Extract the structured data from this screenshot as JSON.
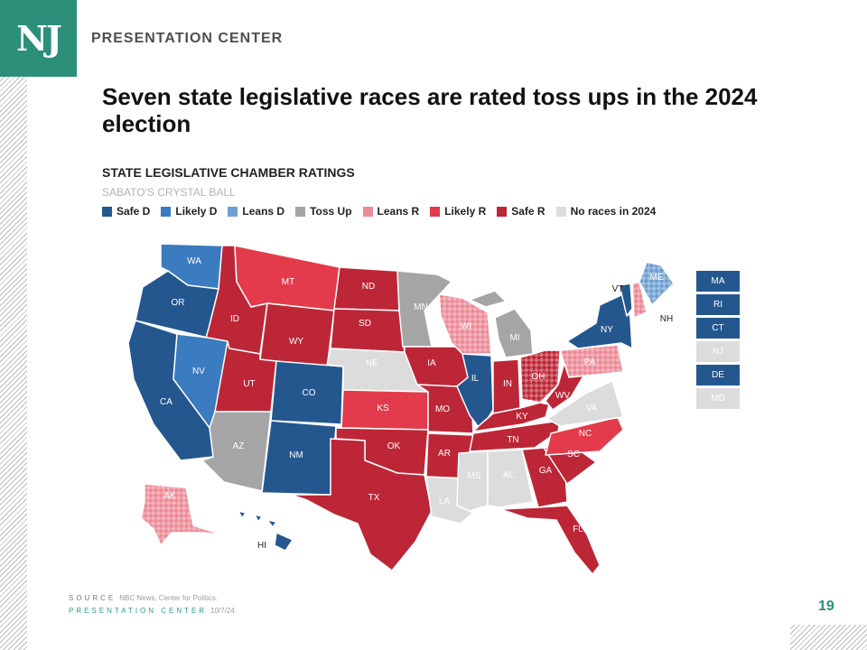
{
  "brand": {
    "logo": "NJ",
    "name": "PRESENTATION CENTER"
  },
  "headline": "Seven state legislative races are rated toss ups in the 2024 election",
  "chart": {
    "title": "STATE LEGISLATIVE CHAMBER RATINGS",
    "subtitle": "SABATO'S CRYSTAL BALL"
  },
  "colors": {
    "safe_d": "#25578f",
    "likely_d": "#3b7bbf",
    "leans_d": "#6d9fd1",
    "toss_up": "#a5a5a5",
    "leans_r": "#ec8a97",
    "likely_r": "#e33b4b",
    "safe_r": "#bd2636",
    "no_races": "#dcdcdc",
    "accent": "#2c8f7a"
  },
  "legend": [
    {
      "label": "Safe D",
      "rating": "safe_d"
    },
    {
      "label": "Likely D",
      "rating": "likely_d"
    },
    {
      "label": "Leans D",
      "rating": "leans_d"
    },
    {
      "label": "Toss Up",
      "rating": "toss_up"
    },
    {
      "label": "Leans R",
      "rating": "leans_r"
    },
    {
      "label": "Likely R",
      "rating": "likely_r"
    },
    {
      "label": "Safe R",
      "rating": "safe_r"
    },
    {
      "label": "No races in 2024",
      "rating": "no_races"
    }
  ],
  "states": [
    {
      "abbr": "WA",
      "rating": "likely_d"
    },
    {
      "abbr": "OR",
      "rating": "safe_d"
    },
    {
      "abbr": "CA",
      "rating": "safe_d"
    },
    {
      "abbr": "ID",
      "rating": "safe_r"
    },
    {
      "abbr": "NV",
      "rating": "likely_d"
    },
    {
      "abbr": "MT",
      "rating": "likely_r"
    },
    {
      "abbr": "WY",
      "rating": "safe_r"
    },
    {
      "abbr": "UT",
      "rating": "safe_r"
    },
    {
      "abbr": "AZ",
      "rating": "toss_up"
    },
    {
      "abbr": "CO",
      "rating": "safe_d"
    },
    {
      "abbr": "NM",
      "rating": "safe_d"
    },
    {
      "abbr": "ND",
      "rating": "safe_r"
    },
    {
      "abbr": "SD",
      "rating": "safe_r"
    },
    {
      "abbr": "NE",
      "rating": "no_races"
    },
    {
      "abbr": "KS",
      "rating": "likely_r"
    },
    {
      "abbr": "OK",
      "rating": "safe_r"
    },
    {
      "abbr": "TX",
      "rating": "safe_r"
    },
    {
      "abbr": "MN",
      "rating": "toss_up"
    },
    {
      "abbr": "IA",
      "rating": "safe_r"
    },
    {
      "abbr": "MO",
      "rating": "safe_r"
    },
    {
      "abbr": "AR",
      "rating": "safe_r"
    },
    {
      "abbr": "LA",
      "rating": "no_races"
    },
    {
      "abbr": "WI",
      "rating": "leans_r"
    },
    {
      "abbr": "IL",
      "rating": "safe_d"
    },
    {
      "abbr": "MI",
      "rating": "toss_up"
    },
    {
      "abbr": "IN",
      "rating": "safe_r"
    },
    {
      "abbr": "OH",
      "rating": "safe_r"
    },
    {
      "abbr": "KY",
      "rating": "safe_r"
    },
    {
      "abbr": "TN",
      "rating": "safe_r"
    },
    {
      "abbr": "MS",
      "rating": "no_races"
    },
    {
      "abbr": "AL",
      "rating": "no_races"
    },
    {
      "abbr": "GA",
      "rating": "safe_r"
    },
    {
      "abbr": "FL",
      "rating": "safe_r"
    },
    {
      "abbr": "SC",
      "rating": "safe_r"
    },
    {
      "abbr": "NC",
      "rating": "likely_r"
    },
    {
      "abbr": "VA",
      "rating": "no_races"
    },
    {
      "abbr": "WV",
      "rating": "safe_r"
    },
    {
      "abbr": "PA",
      "rating": "leans_r"
    },
    {
      "abbr": "NY",
      "rating": "safe_d"
    },
    {
      "abbr": "VT",
      "rating": "safe_d"
    },
    {
      "abbr": "NH",
      "rating": "leans_r"
    },
    {
      "abbr": "ME",
      "rating": "leans_d"
    },
    {
      "abbr": "AK",
      "rating": "leans_r"
    },
    {
      "abbr": "HI",
      "rating": "safe_d"
    }
  ],
  "side_boxes": [
    {
      "label": "MA",
      "rating": "safe_d"
    },
    {
      "label": "RI",
      "rating": "safe_d"
    },
    {
      "label": "CT",
      "rating": "safe_d"
    },
    {
      "label": "NJ",
      "rating": "no_races"
    },
    {
      "label": "DE",
      "rating": "safe_d"
    },
    {
      "label": "MD",
      "rating": "no_races"
    }
  ],
  "footer": {
    "source_key": "SOURCE",
    "source_text": "NBC News, Center for Politics.",
    "center_key": "PRESENTATION CENTER",
    "date": "10/7/24",
    "page": "19"
  }
}
